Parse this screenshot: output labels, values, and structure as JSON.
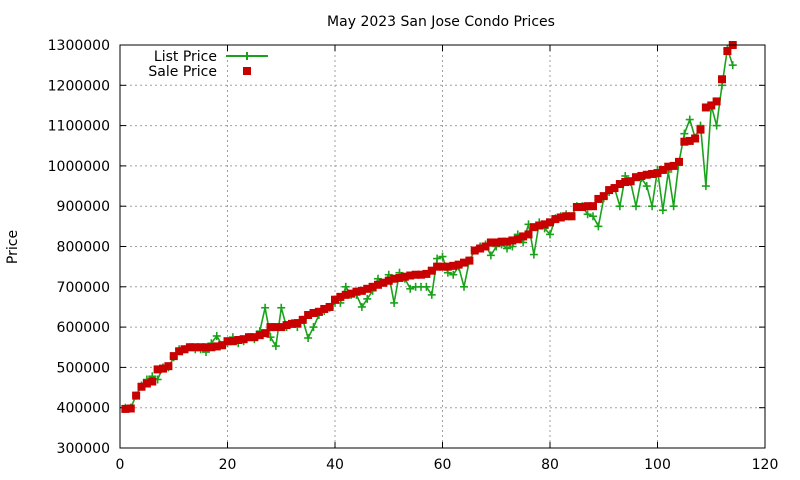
{
  "chart_data": {
    "type": "scatter",
    "title": "May 2023 San Jose Condo Prices",
    "xlabel": "",
    "ylabel": "Price",
    "xlim": [
      0,
      120
    ],
    "ylim": [
      300000,
      1300000
    ],
    "xticks": [
      0,
      20,
      40,
      60,
      80,
      100,
      120
    ],
    "yticks": [
      300000,
      400000,
      500000,
      600000,
      700000,
      800000,
      900000,
      1000000,
      1100000,
      1200000,
      1300000
    ],
    "grid": true,
    "legend_position": "top-left",
    "series": [
      {
        "name": "List Price",
        "style": "line-points",
        "color": "#1aa31a",
        "x": [
          1,
          2,
          3,
          4,
          5,
          6,
          7,
          8,
          9,
          10,
          11,
          12,
          13,
          14,
          15,
          16,
          17,
          18,
          19,
          20,
          21,
          22,
          23,
          24,
          25,
          26,
          27,
          28,
          29,
          30,
          31,
          32,
          33,
          34,
          35,
          36,
          37,
          38,
          39,
          40,
          41,
          42,
          43,
          44,
          45,
          46,
          47,
          48,
          49,
          50,
          51,
          52,
          53,
          54,
          55,
          56,
          57,
          58,
          59,
          60,
          61,
          62,
          63,
          64,
          65,
          66,
          67,
          68,
          69,
          70,
          71,
          72,
          73,
          74,
          75,
          76,
          77,
          78,
          79,
          80,
          81,
          82,
          83,
          84,
          85,
          86,
          87,
          88,
          89,
          90,
          91,
          92,
          93,
          94,
          95,
          96,
          97,
          98,
          99,
          100,
          101,
          102,
          103,
          104,
          105,
          106,
          107,
          108,
          109,
          110,
          111,
          112,
          113,
          114
        ],
        "y": [
          400000,
          400000,
          430000,
          455000,
          470000,
          478000,
          470000,
          500000,
          500000,
          525000,
          545000,
          545000,
          550000,
          545000,
          545000,
          538000,
          560000,
          578000,
          555000,
          560000,
          575000,
          560000,
          565000,
          575000,
          570000,
          590000,
          648000,
          575000,
          553000,
          648000,
          600000,
          610000,
          600000,
          618000,
          573000,
          600000,
          630000,
          640000,
          648000,
          660000,
          660000,
          700000,
          680000,
          680000,
          650000,
          670000,
          690000,
          720000,
          710000,
          730000,
          660000,
          735000,
          720000,
          695000,
          700000,
          700000,
          700000,
          680000,
          770000,
          775000,
          735000,
          730000,
          750000,
          700000,
          765000,
          790000,
          800000,
          805000,
          778000,
          800000,
          805000,
          795000,
          800000,
          830000,
          810000,
          855000,
          780000,
          860000,
          845000,
          830000,
          870000,
          875000,
          880000,
          875000,
          900000,
          900000,
          880000,
          875000,
          850000,
          920000,
          935000,
          945000,
          900000,
          975000,
          960000,
          900000,
          970000,
          950000,
          900000,
          990000,
          890000,
          985000,
          900000,
          1010000,
          1080000,
          1115000,
          1070000,
          1100000,
          950000,
          1150000,
          1100000,
          1200000,
          1290000,
          1250000
        ]
      },
      {
        "name": "Sale Price",
        "style": "points",
        "color": "#c80000",
        "x": [
          1,
          2,
          3,
          4,
          5,
          6,
          7,
          8,
          9,
          10,
          11,
          12,
          13,
          14,
          15,
          16,
          17,
          18,
          19,
          20,
          21,
          22,
          23,
          24,
          25,
          26,
          27,
          28,
          29,
          30,
          31,
          32,
          33,
          34,
          35,
          36,
          37,
          38,
          39,
          40,
          41,
          42,
          43,
          44,
          45,
          46,
          47,
          48,
          49,
          50,
          51,
          52,
          53,
          54,
          55,
          56,
          57,
          58,
          59,
          60,
          61,
          62,
          63,
          64,
          65,
          66,
          67,
          68,
          69,
          70,
          71,
          72,
          73,
          74,
          75,
          76,
          77,
          78,
          79,
          80,
          81,
          82,
          83,
          84,
          85,
          86,
          87,
          88,
          89,
          90,
          91,
          92,
          93,
          94,
          95,
          96,
          97,
          98,
          99,
          100,
          101,
          102,
          103,
          104,
          105,
          106,
          107,
          108,
          109,
          110,
          111,
          112,
          113,
          114
        ],
        "y": [
          397000,
          398000,
          430000,
          452000,
          460000,
          465000,
          495000,
          497000,
          503000,
          528000,
          540000,
          545000,
          550000,
          550000,
          550000,
          550000,
          550000,
          552000,
          555000,
          565000,
          565000,
          568000,
          570000,
          575000,
          575000,
          580000,
          585000,
          600000,
          600000,
          600000,
          605000,
          608000,
          610000,
          618000,
          630000,
          635000,
          638000,
          645000,
          650000,
          668000,
          675000,
          680000,
          683000,
          688000,
          690000,
          695000,
          700000,
          705000,
          710000,
          715000,
          720000,
          722000,
          725000,
          728000,
          730000,
          730000,
          732000,
          740000,
          750000,
          750000,
          750000,
          752000,
          755000,
          760000,
          765000,
          790000,
          795000,
          800000,
          810000,
          810000,
          812000,
          812000,
          815000,
          818000,
          825000,
          830000,
          848000,
          852000,
          855000,
          860000,
          868000,
          872000,
          875000,
          875000,
          898000,
          898000,
          900000,
          900000,
          918000,
          925000,
          940000,
          945000,
          955000,
          960000,
          962000,
          972000,
          975000,
          978000,
          980000,
          982000,
          990000,
          998000,
          1000000,
          1010000,
          1060000,
          1062000,
          1068000,
          1090000,
          1145000,
          1150000,
          1160000,
          1215000,
          1285000,
          1300000
        ]
      }
    ]
  }
}
